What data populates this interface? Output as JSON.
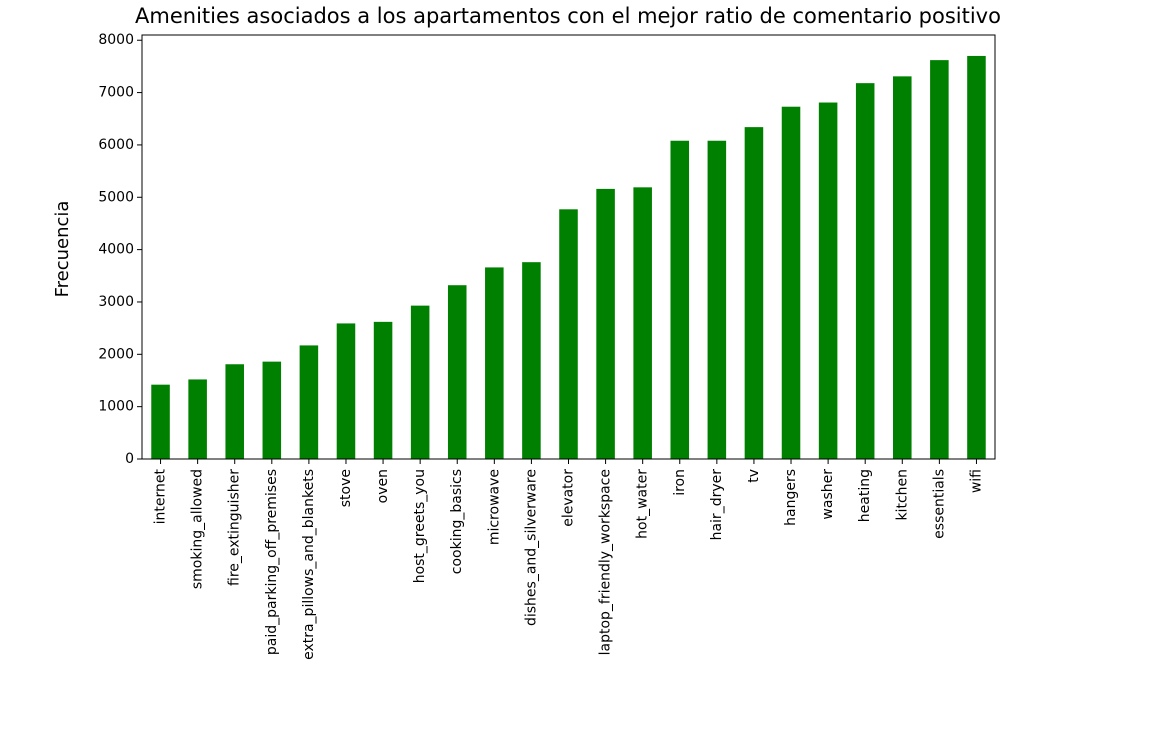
{
  "chart_data": {
    "type": "bar",
    "title": "Amenities asociados a los apartamentos con el mejor ratio de comentario positivo",
    "xlabel": "",
    "ylabel": "Frecuencia",
    "ylim": [
      0,
      8100
    ],
    "yticks": [
      0,
      1000,
      2000,
      3000,
      4000,
      5000,
      6000,
      7000,
      8000
    ],
    "grid": false,
    "bar_color": "#008000",
    "categories": [
      "internet",
      "smoking_allowed",
      "fire_extinguisher",
      "paid_parking_off_premises",
      "extra_pillows_and_blankets",
      "stove",
      "oven",
      "host_greets_you",
      "cooking_basics",
      "microwave",
      "dishes_and_silverware",
      "elevator",
      "laptop_friendly_workspace",
      "hot_water",
      "iron",
      "hair_dryer",
      "tv",
      "hangers",
      "washer",
      "heating",
      "kitchen",
      "essentials",
      "wifi"
    ],
    "values": [
      1420,
      1520,
      1810,
      1860,
      2170,
      2590,
      2620,
      2930,
      3320,
      3660,
      3760,
      4770,
      5160,
      5190,
      6080,
      6080,
      6340,
      6730,
      6810,
      7180,
      7310,
      7620,
      7700
    ]
  }
}
